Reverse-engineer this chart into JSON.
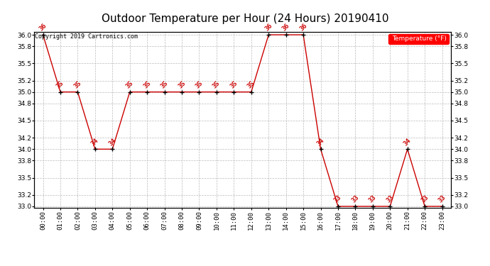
{
  "title": "Outdoor Temperature per Hour (24 Hours) 20190410",
  "copyright_text": "Copyright 2019 Cartronics.com",
  "legend_label": "Temperature (°F)",
  "hours": [
    0,
    1,
    2,
    3,
    4,
    5,
    6,
    7,
    8,
    9,
    10,
    11,
    12,
    13,
    14,
    15,
    16,
    17,
    18,
    19,
    20,
    21,
    22,
    23
  ],
  "temps": [
    36,
    35,
    35,
    34,
    34,
    35,
    35,
    35,
    35,
    35,
    35,
    35,
    35,
    36,
    36,
    36,
    34,
    33,
    33,
    33,
    33,
    34,
    33,
    33
  ],
  "ylim_min": 33.0,
  "ylim_max": 36.0,
  "yticks": [
    33.0,
    33.2,
    33.5,
    33.8,
    34.0,
    34.2,
    34.5,
    34.8,
    35.0,
    35.2,
    35.5,
    35.8,
    36.0
  ],
  "line_color": "#cc0000",
  "marker_color": "black",
  "label_color": "#cc0000",
  "bg_color": "#ffffff",
  "grid_color": "#bbbbbb",
  "title_fontsize": 11,
  "label_fontsize": 6.5,
  "tick_fontsize": 6.5,
  "copyright_fontsize": 6
}
